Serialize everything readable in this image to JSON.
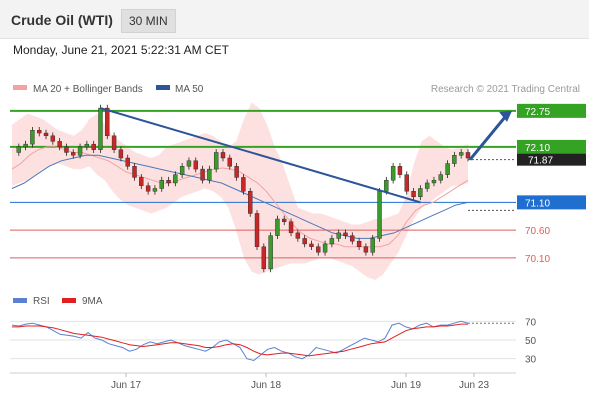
{
  "header": {
    "title": "Crude Oil (WTI)",
    "timeframe": "30 MIN",
    "datetime": "Monday, June 21, 2021 5:22:31 AM CET"
  },
  "legend": {
    "ma20": "MA 20 + Bollinger Bands",
    "ma50": "MA 50",
    "credit": "Research © 2021 Trading Central"
  },
  "rsi_legend": {
    "rsi": "RSI",
    "ma9": "9MA"
  },
  "colors": {
    "pivot_green": "#34a324",
    "support_blue": "#1f6fd1",
    "trend_blue": "#2d5597",
    "red_level": "#e05c5c",
    "last_price": "#222222",
    "band_fill": "#fde1e1",
    "ma20": "#f2a2a2",
    "ma50": "#4f78b8",
    "rsi_line": "#5b7fd1",
    "rsi_ma": "#e02020",
    "candle_up": "#3a9a2b",
    "candle_down": "#c62828"
  },
  "chart_data": {
    "type": "candlestick",
    "symbol": "Crude Oil (WTI)",
    "interval": "30 MIN",
    "y_range": [
      69.7,
      73.0
    ],
    "x_labels": [
      "Jun 17",
      "Jun 18",
      "Jun 19",
      "Jun 23"
    ],
    "levels": [
      {
        "value": 72.75,
        "label": "72.75",
        "kind": "resistance",
        "color": "#34a324"
      },
      {
        "value": 72.1,
        "label": "72.10",
        "kind": "pivot",
        "color": "#34a324"
      },
      {
        "value": 71.87,
        "label": "71.87",
        "kind": "last",
        "color": "#222222"
      },
      {
        "value": 71.1,
        "label": "71.10",
        "kind": "support",
        "color": "#1f6fd1"
      },
      {
        "value": 70.6,
        "label": "70.60",
        "kind": "support",
        "color": "#e05c5c"
      },
      {
        "value": 70.1,
        "label": "70.10",
        "kind": "support",
        "color": "#e05c5c"
      }
    ],
    "price_path": [
      72.0,
      72.1,
      72.15,
      72.4,
      72.35,
      72.3,
      72.2,
      72.1,
      72.0,
      71.95,
      72.1,
      72.15,
      72.05,
      72.8,
      72.3,
      72.05,
      71.9,
      71.75,
      71.55,
      71.4,
      71.3,
      71.35,
      71.5,
      71.45,
      71.6,
      71.75,
      71.85,
      71.7,
      71.5,
      71.7,
      72.0,
      71.9,
      71.75,
      71.55,
      71.3,
      70.9,
      70.3,
      69.9,
      70.5,
      70.8,
      70.75,
      70.55,
      70.45,
      70.35,
      70.3,
      70.2,
      70.35,
      70.45,
      70.55,
      70.5,
      70.4,
      70.3,
      70.2,
      70.45,
      71.3,
      71.5,
      71.75,
      71.6,
      71.3,
      71.2,
      71.35,
      71.45,
      71.5,
      71.6,
      71.8,
      71.95,
      72.0,
      71.9
    ],
    "bands_upper": [
      72.5,
      72.6,
      72.7,
      72.65,
      72.6,
      72.5,
      72.4,
      72.35,
      72.3,
      72.4,
      72.6,
      72.7,
      72.5,
      72.3,
      72.2,
      72.1,
      72.0,
      71.95,
      71.9,
      71.95,
      72.1,
      72.15,
      72.2,
      72.25,
      72.3,
      72.35,
      72.3,
      72.2,
      72.1,
      72.2,
      72.6,
      72.9,
      72.8,
      72.5,
      72.1,
      71.8,
      71.4,
      71.0,
      70.95,
      70.9,
      70.9,
      70.85,
      70.8,
      70.75,
      70.7,
      70.7,
      70.75,
      70.8,
      70.8,
      70.85,
      70.9,
      71.2,
      71.8,
      72.2,
      72.3,
      72.2,
      72.1,
      72.05,
      72.1,
      72.15
    ],
    "bands_lower": [
      71.4,
      71.45,
      71.5,
      71.6,
      71.7,
      71.75,
      71.8,
      71.75,
      71.7,
      71.7,
      71.75,
      71.6,
      71.5,
      71.3,
      71.15,
      71.05,
      71.0,
      70.95,
      70.9,
      70.95,
      71.0,
      71.1,
      71.2,
      71.25,
      71.3,
      71.35,
      71.3,
      71.2,
      71.0,
      70.6,
      70.1,
      69.85,
      69.8,
      69.85,
      69.9,
      69.95,
      70.0,
      70.0,
      70.0,
      70.05,
      70.1,
      70.1,
      70.05,
      70.0,
      69.95,
      69.85,
      69.75,
      69.7,
      69.8,
      70.0,
      70.2,
      70.5,
      70.8,
      71.0,
      71.1,
      71.2,
      71.3,
      71.4,
      71.4,
      71.45
    ],
    "ma20": [
      71.7,
      71.8,
      71.95,
      72.05,
      72.1,
      72.1,
      72.05,
      72.0,
      72.0,
      71.95,
      71.9,
      71.85,
      71.75,
      71.65,
      71.6,
      71.55,
      71.5,
      71.45,
      71.45,
      71.5,
      71.55,
      71.6,
      71.65,
      71.7,
      71.72,
      71.7,
      71.65,
      71.55,
      71.45,
      71.3,
      71.1,
      70.9,
      70.7,
      70.55,
      70.45,
      70.4,
      70.35,
      70.35,
      70.3,
      70.3,
      70.3,
      70.3,
      70.3,
      70.35,
      70.5,
      70.75,
      70.95,
      71.05,
      71.1,
      71.2,
      71.3,
      71.4,
      71.5
    ],
    "ma50": [
      71.35,
      71.45,
      71.6,
      71.75,
      71.85,
      71.9,
      71.95,
      71.95,
      71.9,
      71.85,
      71.8,
      71.75,
      71.7,
      71.65,
      71.6,
      71.55,
      71.5,
      71.45,
      71.35,
      71.25,
      71.15,
      71.05,
      70.95,
      70.85,
      70.75,
      70.65,
      70.55,
      70.5,
      70.45,
      70.45,
      70.5,
      70.55,
      70.65,
      70.75,
      70.85,
      70.95,
      71.05,
      71.1
    ],
    "trendline": {
      "from": {
        "index": 13,
        "value": 72.8
      },
      "to": {
        "index": 60,
        "value": 71.1
      }
    },
    "forecast_arrow": {
      "from_value": 71.87,
      "to_value": 72.75
    },
    "rsi": {
      "ticks": [
        70,
        50,
        30
      ],
      "y_range": [
        20,
        80
      ],
      "rsi_values": [
        66,
        65,
        67,
        68,
        66,
        64,
        60,
        56,
        55,
        54,
        52,
        58,
        52,
        50,
        46,
        44,
        42,
        38,
        40,
        45,
        48,
        46,
        48,
        50,
        47,
        44,
        42,
        40,
        38,
        42,
        48,
        50,
        46,
        42,
        30,
        28,
        34,
        40,
        42,
        38,
        36,
        32,
        30,
        34,
        42,
        40,
        38,
        36,
        40,
        44,
        48,
        52,
        50,
        48,
        52,
        66,
        68,
        64,
        62,
        66,
        68,
        64,
        66,
        66,
        68,
        70,
        68
      ],
      "ma_values": [
        64,
        64,
        65,
        65,
        65,
        64,
        63,
        61,
        59,
        57,
        56,
        55,
        54,
        53,
        51,
        49,
        47,
        45,
        44,
        43,
        44,
        45,
        46,
        47,
        47,
        46,
        45,
        44,
        42,
        42,
        43,
        45,
        46,
        45,
        42,
        38,
        35,
        34,
        35,
        36,
        36,
        35,
        34,
        33,
        34,
        35,
        36,
        37,
        38,
        40,
        42,
        44,
        46,
        47,
        48,
        52,
        56,
        60,
        62,
        63,
        64,
        64,
        65,
        65,
        66,
        67,
        67
      ]
    }
  }
}
